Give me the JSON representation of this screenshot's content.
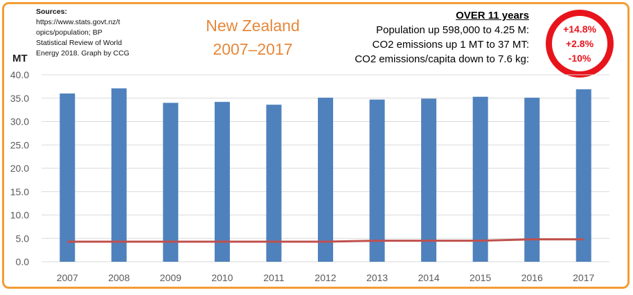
{
  "sources": {
    "header": "Sources:",
    "lines": [
      "https://www.stats.govt.nz/t",
      "opics/population; BP",
      "Statistical Review of World",
      "Energy 2018. Graph by CCG"
    ]
  },
  "title": {
    "line1": "New Zealand",
    "line2": "2007–2017"
  },
  "summary": {
    "header": "OVER 11 years",
    "rows": [
      {
        "label": "Population up 598,000 to 4.25 M:",
        "change": "+14.8%"
      },
      {
        "label": "CO2 emissions up 1 MT to 37 MT:",
        "change": "+2.8%"
      },
      {
        "label": "CO2 emissions/capita down to 7.6 kg:",
        "change": "-10%"
      }
    ]
  },
  "colors": {
    "frame": "#f39c33",
    "title": "#e6873a",
    "bars": "#4f81bd",
    "line": "#c0504d",
    "ring": "#e8141b"
  },
  "chart_data": {
    "type": "bar",
    "ylabel": "MT",
    "ylim": [
      0,
      40
    ],
    "yticks": [
      "0.0",
      "5.0",
      "10.0",
      "15.0",
      "20.0",
      "25.0",
      "30.0",
      "35.0",
      "40.0"
    ],
    "grid": true,
    "categories": [
      "2007",
      "2008",
      "2009",
      "2010",
      "2011",
      "2012",
      "2013",
      "2014",
      "2015",
      "2016",
      "2017"
    ],
    "series": [
      {
        "type": "bar",
        "values": [
          36.0,
          37.1,
          34.0,
          34.2,
          33.6,
          35.1,
          34.7,
          34.9,
          35.3,
          35.1,
          36.9
        ]
      },
      {
        "type": "line",
        "values": [
          4.3,
          4.3,
          4.3,
          4.3,
          4.3,
          4.3,
          4.5,
          4.5,
          4.5,
          4.8,
          4.8
        ]
      }
    ]
  }
}
